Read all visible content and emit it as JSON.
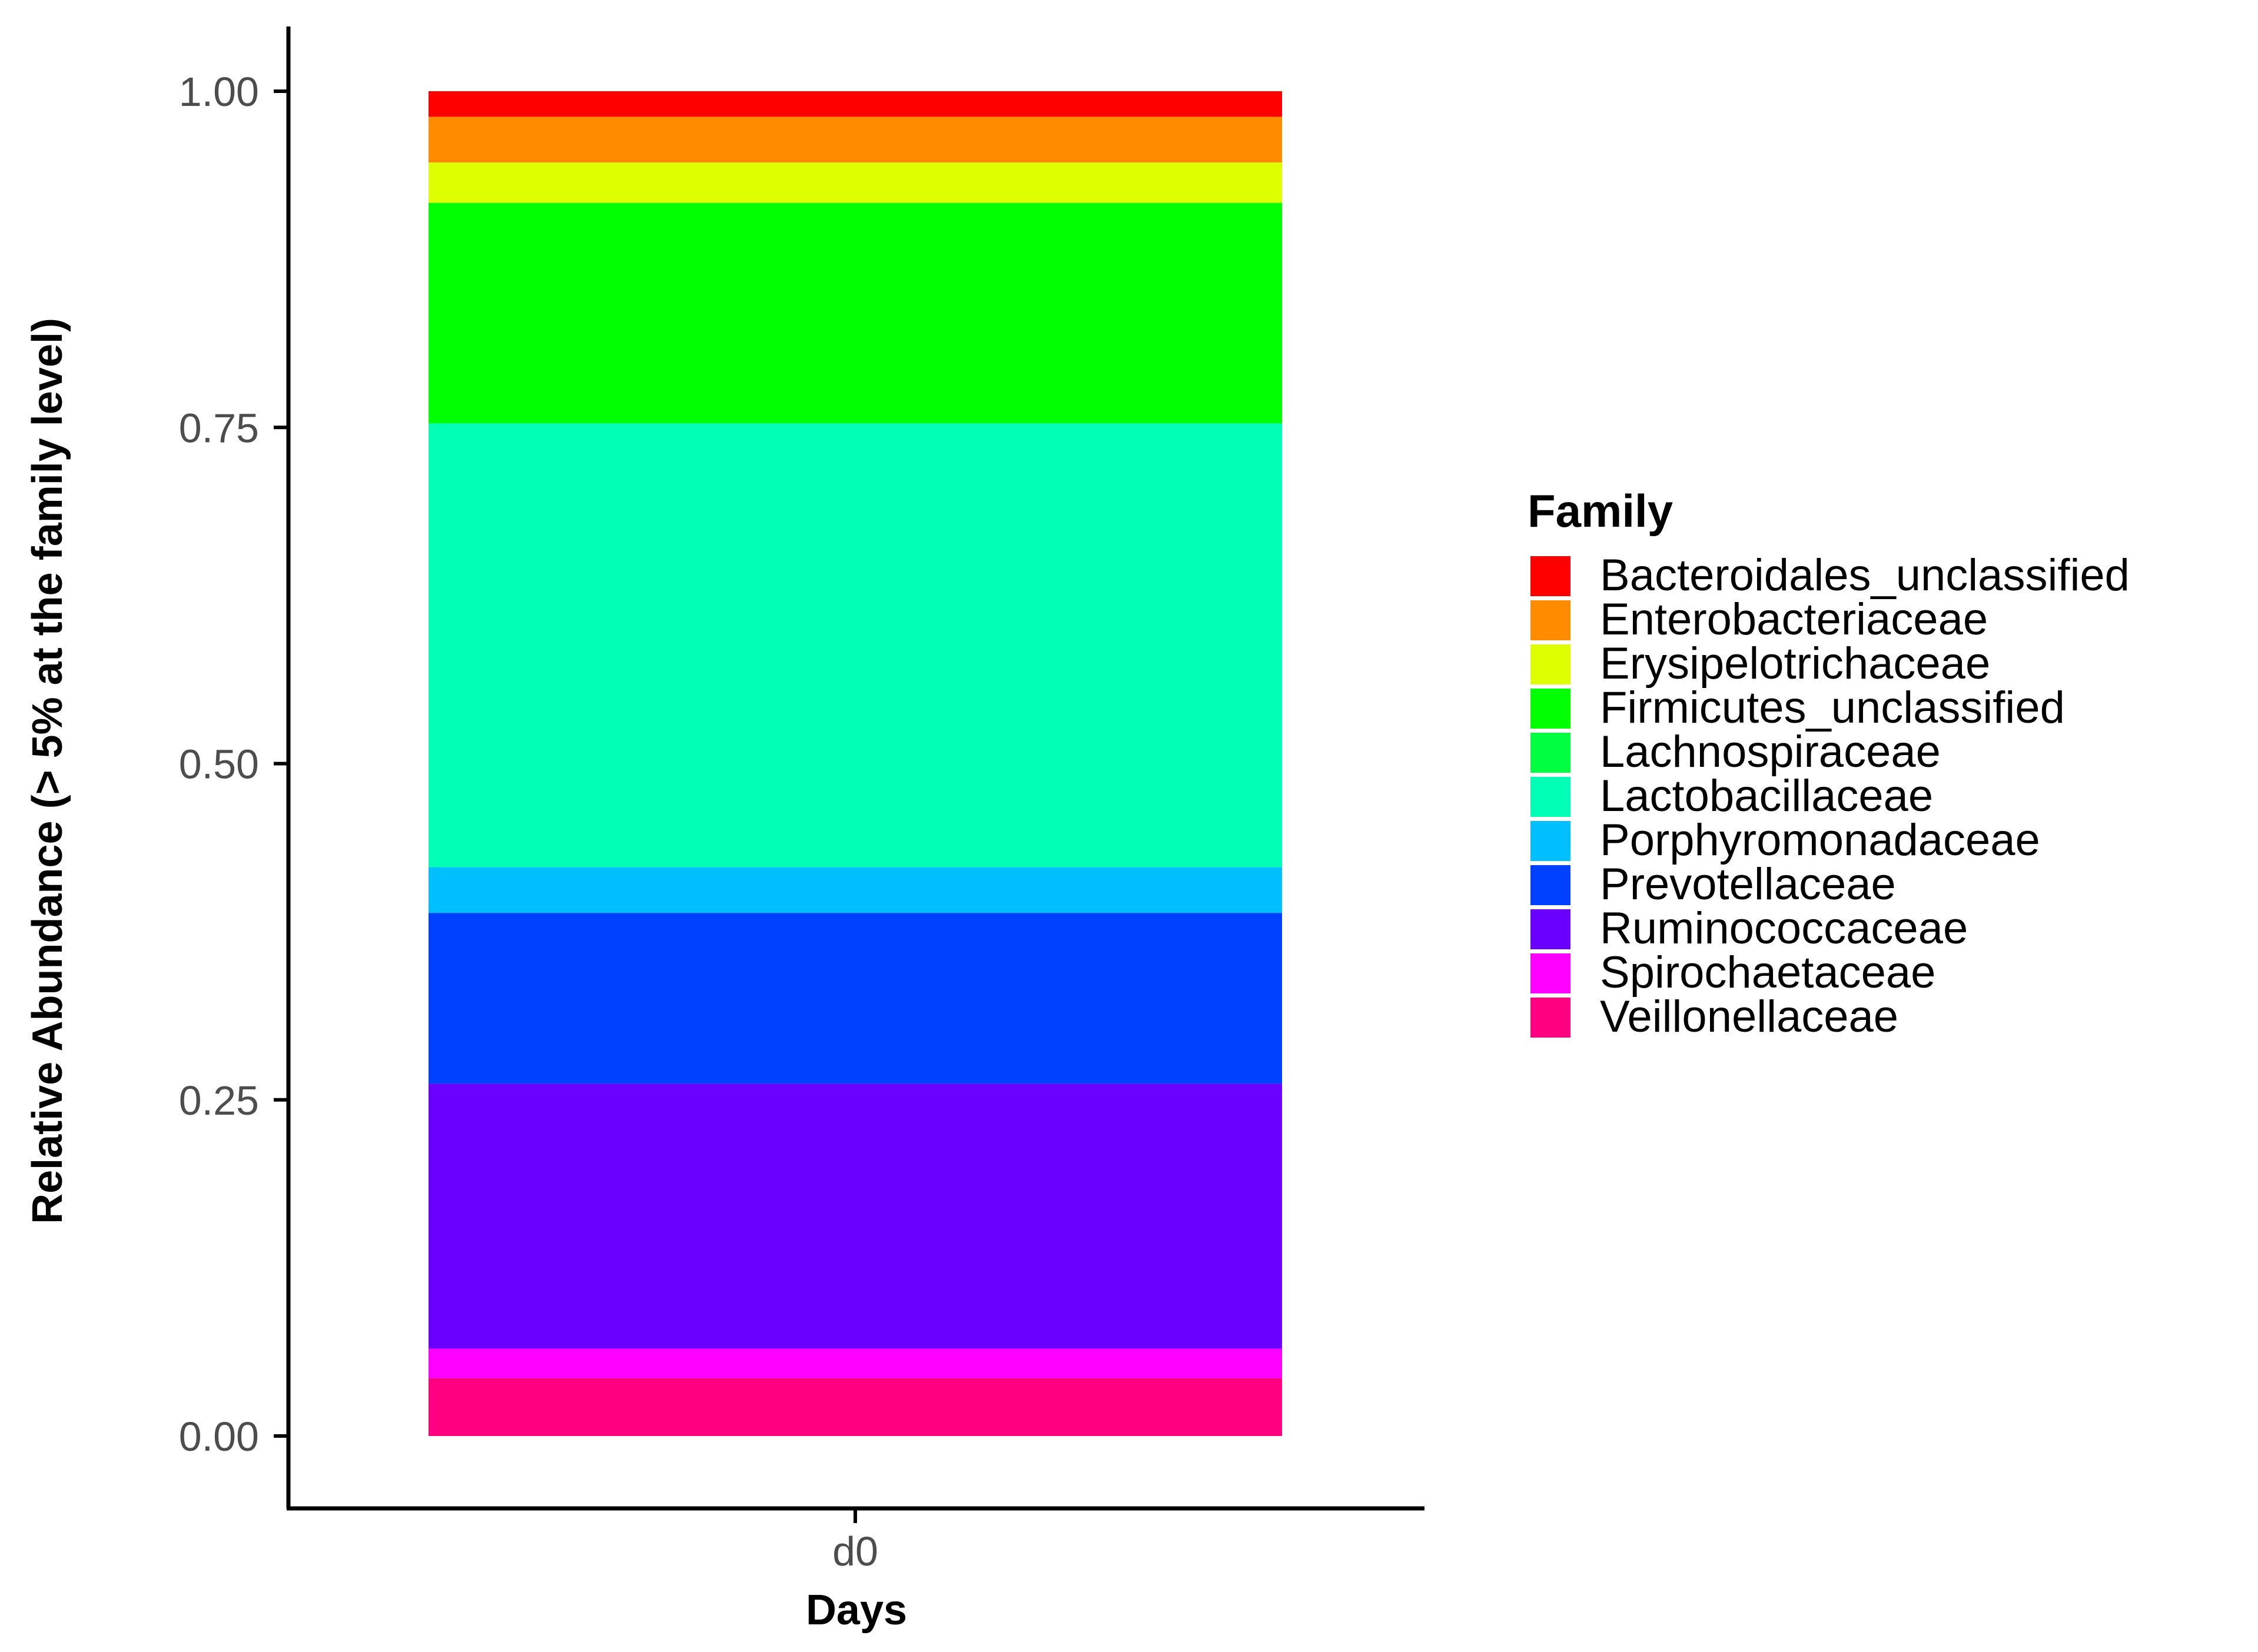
{
  "chart_data": {
    "type": "bar",
    "stacked": true,
    "categories": [
      "d0"
    ],
    "xlabel": "Days",
    "ylabel": "Relative Abundance (> 5% at the family level)",
    "ylim": [
      0,
      1.05
    ],
    "yticks": [
      "0.00",
      "0.25",
      "0.50",
      "0.75",
      "1.00"
    ],
    "grid": false,
    "legend": {
      "title": "Family",
      "position": "right"
    },
    "series": [
      {
        "name": "Veillonellaceae",
        "color": "#ff0080",
        "values": [
          0.043
        ]
      },
      {
        "name": "Spirochaetaceae",
        "color": "#ff00ff",
        "values": [
          0.022
        ]
      },
      {
        "name": "Ruminococcaceae",
        "color": "#6a00ff",
        "values": [
          0.197
        ]
      },
      {
        "name": "Prevotellaceae",
        "color": "#0040ff",
        "values": [
          0.127
        ]
      },
      {
        "name": "Porphyromonadaceae",
        "color": "#00bfff",
        "values": [
          0.034
        ]
      },
      {
        "name": "Lactobacillaceae",
        "color": "#00ffb5",
        "values": [
          0.33
        ]
      },
      {
        "name": "Lachnospiraceae",
        "color": "#00ff40",
        "values": [
          0.0
        ]
      },
      {
        "name": "Firmicutes_unclassified",
        "color": "#00ff00",
        "values": [
          0.164
        ]
      },
      {
        "name": "Erysipelotrichaceae",
        "color": "#ddff00",
        "values": [
          0.03
        ]
      },
      {
        "name": "Enterobacteriaceae",
        "color": "#ff8c00",
        "values": [
          0.034
        ]
      },
      {
        "name": "Bacteroidales_unclassified",
        "color": "#ff0000",
        "values": [
          0.019
        ]
      }
    ]
  }
}
